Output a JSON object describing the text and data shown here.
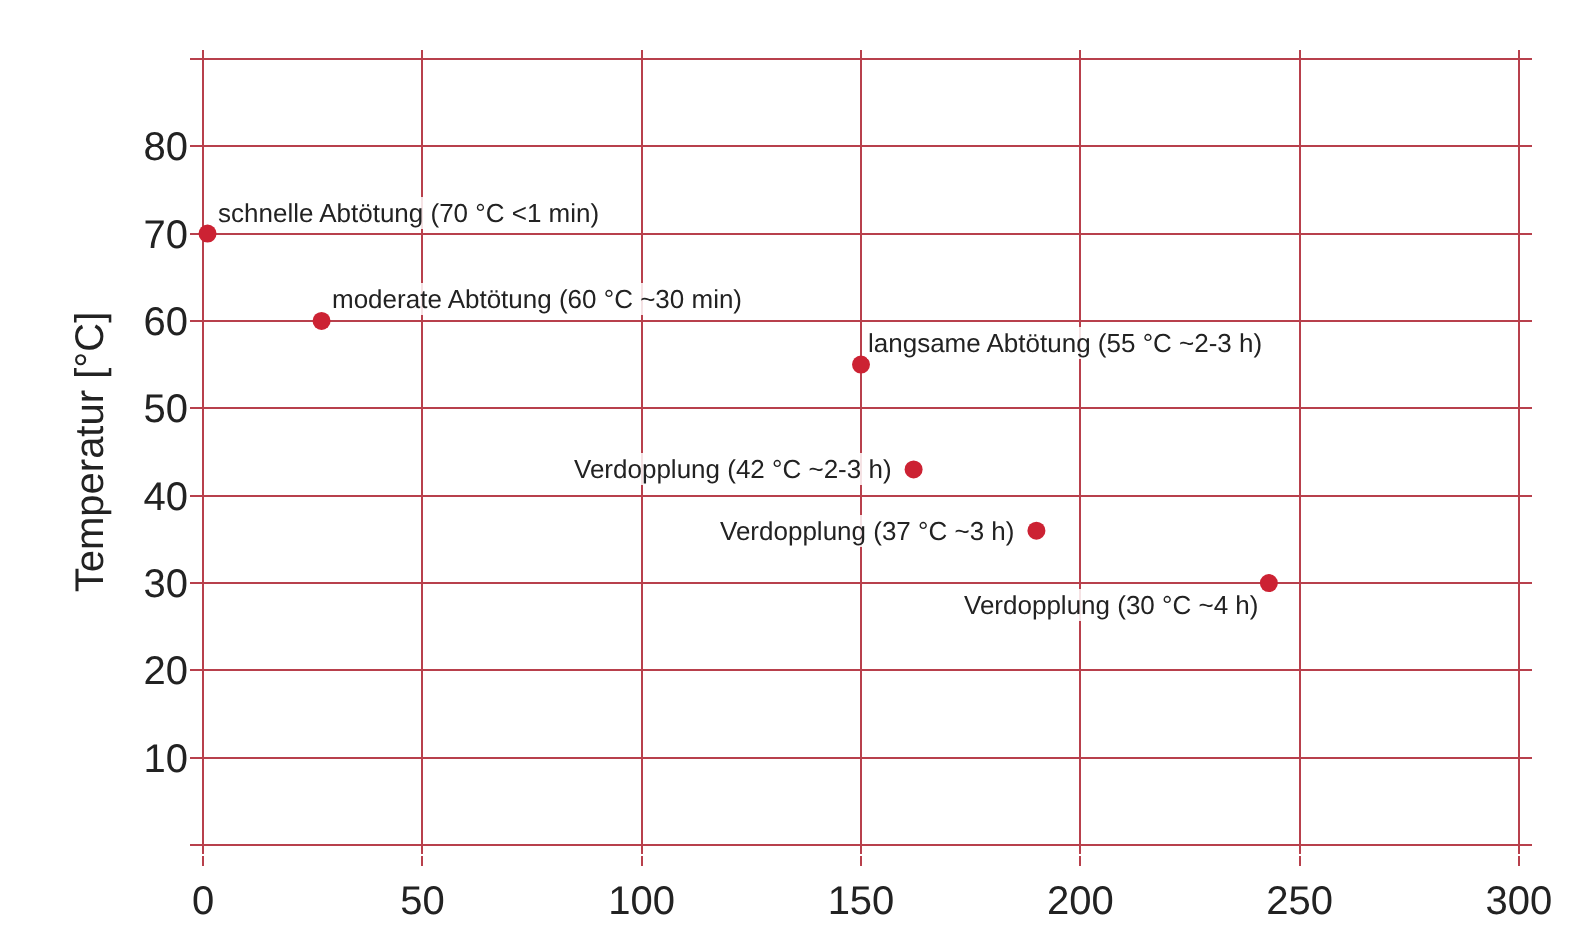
{
  "chart_data": {
    "type": "scatter",
    "ylabel": "Temperatur [°C]",
    "x": [
      1,
      27,
      150,
      162,
      190,
      243
    ],
    "series": [
      {
        "color": "#cc2233",
        "values": [
          70,
          60,
          55,
          43,
          36,
          30
        ]
      }
    ],
    "annotations": [
      {
        "text": "schnelle Abtötung (70 °C <1 min)",
        "x": 1,
        "y": 70
      },
      {
        "text": "moderate Abtötung (60 °C ~30 min)",
        "x": 27,
        "y": 60
      },
      {
        "text": "langsame Abtötung (55 °C ~2-3 h)",
        "x": 150,
        "y": 55
      },
      {
        "text": "Verdopplung (42 °C ~2-3 h)",
        "x": 162,
        "y": 43
      },
      {
        "text": "Verdopplung (37 °C ~3 h)",
        "x": 190,
        "y": 36
      },
      {
        "text": "Verdopplung (30 °C ~4 h)",
        "x": 243,
        "y": 30
      }
    ],
    "xlim": [
      -3,
      303
    ],
    "ylim": [
      -1,
      91
    ],
    "xticks": [
      0,
      50,
      100,
      150,
      200,
      250,
      300
    ],
    "yticks": [
      {
        "value": 0,
        "label": null
      },
      10,
      20,
      30,
      40,
      50,
      60,
      70,
      80,
      {
        "value": 90,
        "label": null
      }
    ],
    "grid": true,
    "marker": "circle"
  }
}
